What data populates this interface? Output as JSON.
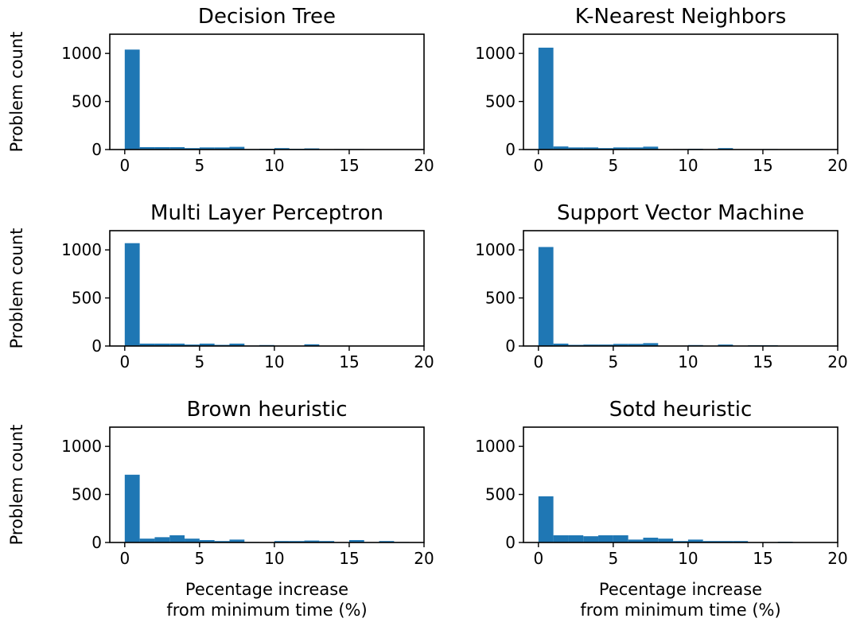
{
  "colors": {
    "bar": "#1f77b4",
    "axis": "#000000",
    "background": "#ffffff"
  },
  "shared": {
    "ylabel": "Problem count",
    "xlabel_line1": "Pecentage increase",
    "xlabel_line2": "from minimum time (%)"
  },
  "chart_data": [
    {
      "type": "bar",
      "title": "Decision Tree",
      "bin_width": 1,
      "x_start": 0,
      "values": [
        1040,
        25,
        25,
        25,
        15,
        22,
        22,
        28,
        5,
        8,
        15,
        8,
        12,
        3,
        5,
        5,
        0,
        0,
        0
      ],
      "xlim": [
        -1,
        20
      ],
      "ylim": [
        0,
        1200
      ],
      "xticks": [
        0,
        5,
        10,
        15,
        20
      ],
      "yticks": [
        0,
        500,
        1000
      ],
      "ylabel": "Problem count",
      "xlabel": ""
    },
    {
      "type": "bar",
      "title": "K-Nearest Neighbors",
      "bin_width": 1,
      "x_start": 0,
      "values": [
        1060,
        32,
        22,
        22,
        15,
        22,
        22,
        30,
        3,
        5,
        8,
        3,
        15,
        3,
        3,
        5,
        0,
        0,
        0
      ],
      "xlim": [
        -1,
        20
      ],
      "ylim": [
        0,
        1200
      ],
      "xticks": [
        0,
        5,
        10,
        15,
        20
      ],
      "yticks": [
        0,
        500,
        1000
      ],
      "ylabel": "",
      "xlabel": ""
    },
    {
      "type": "bar",
      "title": "Multi Layer Perceptron",
      "bin_width": 1,
      "x_start": 0,
      "values": [
        1070,
        25,
        25,
        25,
        15,
        25,
        12,
        25,
        5,
        10,
        3,
        3,
        18,
        3,
        0,
        0,
        0,
        0,
        0
      ],
      "xlim": [
        -1,
        20
      ],
      "ylim": [
        0,
        1200
      ],
      "xticks": [
        0,
        5,
        10,
        15,
        20
      ],
      "yticks": [
        0,
        500,
        1000
      ],
      "ylabel": "Problem count",
      "xlabel": ""
    },
    {
      "type": "bar",
      "title": "Support Vector Machine",
      "bin_width": 1,
      "x_start": 0,
      "values": [
        1030,
        25,
        12,
        15,
        15,
        22,
        22,
        30,
        3,
        3,
        10,
        3,
        15,
        3,
        8,
        8,
        0,
        0,
        0
      ],
      "xlim": [
        -1,
        20
      ],
      "ylim": [
        0,
        1200
      ],
      "xticks": [
        0,
        5,
        10,
        15,
        20
      ],
      "yticks": [
        0,
        500,
        1000
      ],
      "ylabel": "",
      "xlabel": ""
    },
    {
      "type": "bar",
      "title": "Brown heuristic",
      "bin_width": 1,
      "x_start": 0,
      "values": [
        705,
        40,
        55,
        75,
        40,
        25,
        15,
        30,
        5,
        3,
        15,
        15,
        20,
        15,
        3,
        25,
        3,
        15,
        5
      ],
      "xlim": [
        -1,
        20
      ],
      "ylim": [
        0,
        1200
      ],
      "xticks": [
        0,
        5,
        10,
        15,
        20
      ],
      "yticks": [
        0,
        500,
        1000
      ],
      "ylabel": "Problem count",
      "xlabel": "Pecentage increase from minimum time (%)"
    },
    {
      "type": "bar",
      "title": "Sotd heuristic",
      "bin_width": 1,
      "x_start": 0,
      "values": [
        480,
        75,
        75,
        65,
        75,
        75,
        30,
        50,
        40,
        15,
        30,
        15,
        15,
        15,
        3,
        3,
        8,
        3,
        3
      ],
      "xlim": [
        -1,
        20
      ],
      "ylim": [
        0,
        1200
      ],
      "xticks": [
        0,
        5,
        10,
        15,
        20
      ],
      "yticks": [
        0,
        500,
        1000
      ],
      "ylabel": "",
      "xlabel": "Pecentage increase from minimum time (%)"
    }
  ]
}
